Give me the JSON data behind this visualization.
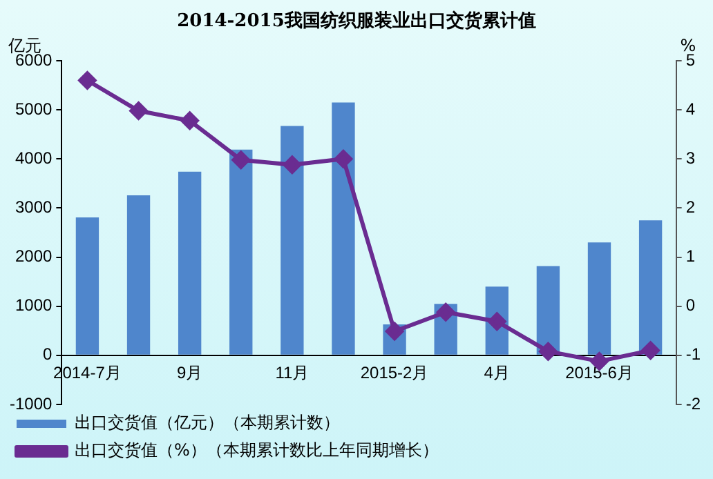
{
  "chart_data": {
    "type": "bar",
    "title": "2014-2015我国纺织服装业出口交货累计值",
    "ylabel": "亿元",
    "y2label": "%",
    "categories": [
      "2014-7月",
      null,
      "9月",
      null,
      "11月",
      null,
      "2015-2月",
      null,
      "4月",
      null,
      "2015-6月",
      null
    ],
    "series": [
      {
        "name": "出口交货值（亿元）（本期累计数）",
        "color": "#4f86cc",
        "values": [
          2810,
          3260,
          3740,
          4190,
          4670,
          5150,
          630,
          1050,
          1400,
          1820,
          2300,
          2750
        ]
      },
      {
        "name": "出口交货值（%）（本期累计数比上年同期增长）",
        "type": "line",
        "axis": "y2",
        "color": "#6a2c91",
        "marker": "diamond",
        "values": [
          4.6,
          3.98,
          3.78,
          2.98,
          2.88,
          3.0,
          -0.51,
          -0.12,
          -0.31,
          -0.92,
          -1.12,
          -0.9
        ]
      }
    ],
    "ylim": [
      -1000,
      6000
    ],
    "yticks": [
      -1000,
      0,
      1000,
      2000,
      3000,
      4000,
      5000,
      6000
    ],
    "y2lim": [
      -2,
      5
    ],
    "y2ticks": [
      -2,
      -1,
      0,
      1,
      2,
      3,
      4,
      5
    ],
    "grid": false,
    "legend": "bottom"
  }
}
